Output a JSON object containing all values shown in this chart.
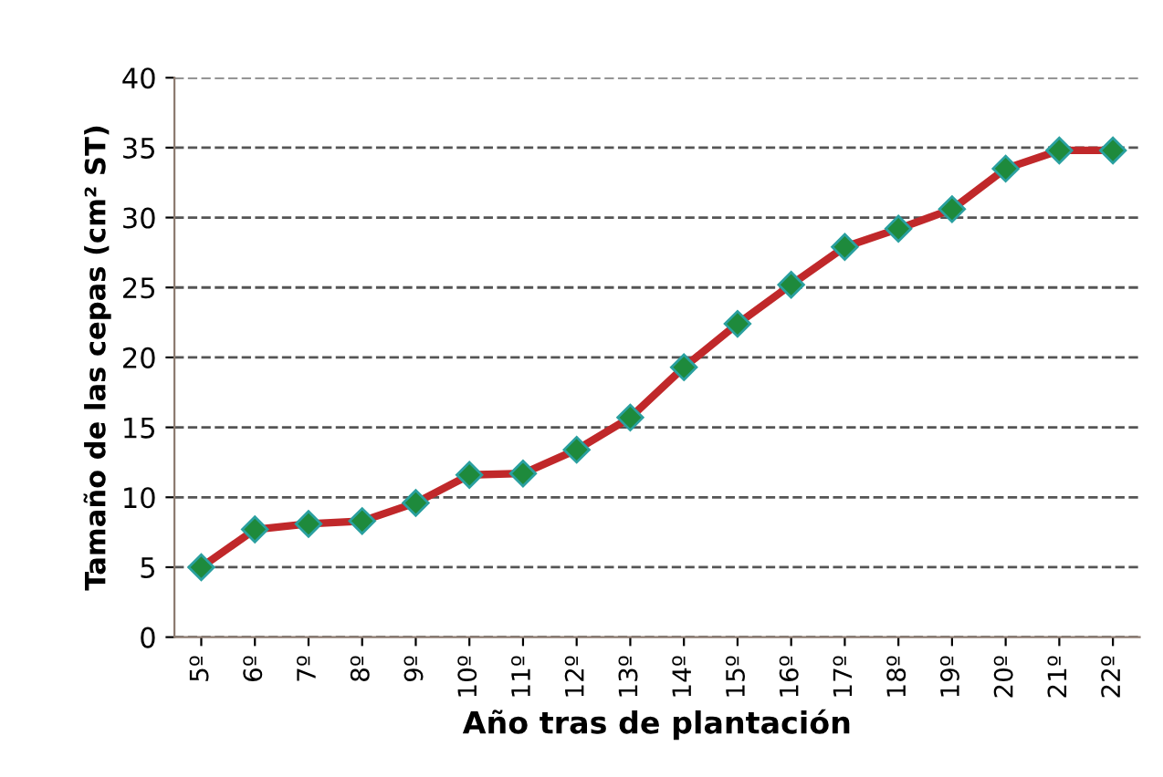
{
  "chart_data": {
    "type": "line",
    "xlabel": "Año tras de plantación",
    "ylabel": "Tamaño de las cepas (cm² ST)",
    "categories": [
      "5º",
      "6º",
      "7º",
      "8º",
      "9º",
      "10º",
      "11º",
      "12º",
      "13º",
      "14º",
      "15º",
      "16º",
      "17º",
      "18º",
      "19º",
      "20º",
      "21º",
      "22º"
    ],
    "series": [
      {
        "color": "#c0282a",
        "values": [
          5,
          7.7,
          8.1,
          8.3,
          9.6,
          11.6,
          11.7,
          13.4,
          15.7,
          19.3,
          22.4,
          25.2,
          27.9,
          29.2,
          30.6,
          33.5,
          34.8,
          34.8
        ]
      }
    ],
    "ylim": [
      0,
      40
    ],
    "yticks": [
      0,
      5,
      10,
      15,
      20,
      25,
      30,
      35,
      40
    ],
    "grid": "y",
    "marker": "diamond",
    "line_style": "solid",
    "legend": false
  }
}
